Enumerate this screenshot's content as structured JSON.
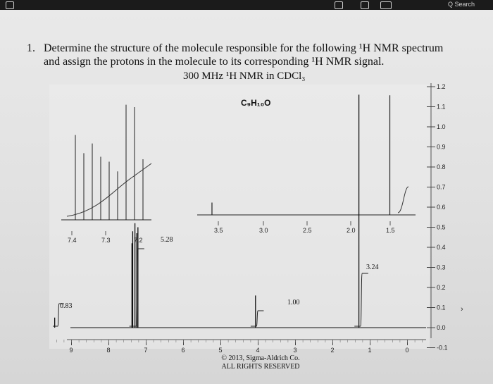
{
  "question": {
    "number": "1.",
    "line1": "Determine the structure of the molecule responsible for the following ¹H NMR spectrum",
    "line2": "and assign the protons in the molecule to its corresponding ¹H NMR signal.",
    "spectrum_title": "300 MHz ¹H NMR in CDCl₃"
  },
  "toolbar": {
    "search_label": "Q Search"
  },
  "chart_data": {
    "type": "line",
    "formula": "C₉H₁₀O",
    "x_ticks": [
      "9",
      "8",
      "7",
      "6",
      "5",
      "4",
      "3",
      "2",
      "1",
      "0"
    ],
    "xlim": [
      9.5,
      -0.5
    ],
    "y_ticks": [
      "-0.1",
      "0.0",
      "0.1",
      "0.2",
      "0.3",
      "0.4",
      "0.5",
      "0.6",
      "0.7",
      "0.8",
      "0.9",
      "1.0",
      "1.1",
      "1.2"
    ],
    "ylim": [
      -0.1,
      1.2
    ],
    "series": [
      {
        "peaks": [
          {
            "x": 9.45,
            "height": 0.05
          },
          {
            "x": 7.38,
            "height": 0.42
          },
          {
            "x": 7.36,
            "height": 0.48
          },
          {
            "x": 7.3,
            "height": 0.52
          },
          {
            "x": 7.25,
            "height": 0.47
          },
          {
            "x": 7.22,
            "height": 0.5
          },
          {
            "x": 4.07,
            "height": 0.16
          },
          {
            "x": 1.3,
            "height": 1.16
          }
        ]
      }
    ],
    "integrations": [
      {
        "label": "0.83",
        "x": 9.3
      },
      {
        "label": "5.28",
        "x": 7.3
      },
      {
        "label": "1.00",
        "x": 4.07
      },
      {
        "label": "3.24",
        "x": 1.28
      }
    ],
    "inset_left": {
      "ticks": [
        "7.4",
        "7.3",
        "7.2"
      ],
      "peaks": [
        0.7,
        0.55,
        0.63,
        0.52,
        0.48,
        0.4,
        0.95,
        0.93,
        0.5
      ]
    },
    "inset_right": {
      "ticks": [
        "3.5",
        "3.0",
        "2.5",
        "2.0",
        "1.5"
      ],
      "peaks": [
        {
          "x": 4.07,
          "height": 0.1
        },
        {
          "x": 1.3,
          "height": 0.97
        }
      ]
    }
  },
  "copyright": {
    "line1": "© 2013, Sigma-Aldrich Co.",
    "line2": "ALL RIGHTS RESERVED"
  }
}
